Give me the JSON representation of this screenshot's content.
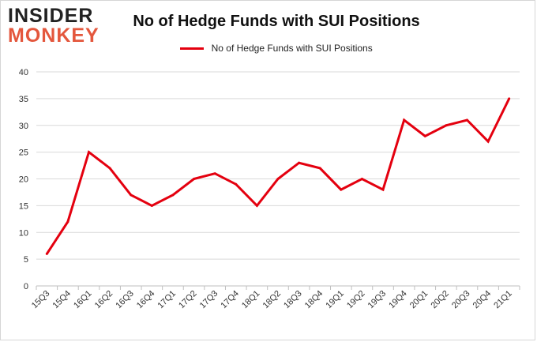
{
  "logo": {
    "line1": "INSIDER",
    "line2": "MONKEY"
  },
  "chart_data": {
    "type": "line",
    "title": "No of Hedge Funds with SUI Positions",
    "xlabel": "",
    "ylabel": "",
    "categories": [
      "15Q3",
      "15Q4",
      "16Q1",
      "16Q2",
      "16Q3",
      "16Q4",
      "17Q1",
      "17Q2",
      "17Q3",
      "17Q4",
      "18Q1",
      "18Q2",
      "18Q3",
      "18Q4",
      "19Q1",
      "19Q2",
      "19Q3",
      "19Q4",
      "20Q1",
      "20Q2",
      "20Q3",
      "20Q4",
      "21Q1"
    ],
    "series": [
      {
        "name": "No of Hedge Funds with SUI Positions",
        "color": "#e4000f",
        "values": [
          6,
          12,
          25,
          22,
          17,
          15,
          17,
          20,
          21,
          19,
          15,
          20,
          23,
          22,
          18,
          20,
          18,
          31,
          28,
          30,
          31,
          27,
          35
        ]
      }
    ],
    "ylim": [
      0,
      40
    ],
    "yticks": [
      0,
      5,
      10,
      15,
      20,
      25,
      30,
      35,
      40
    ],
    "grid": true,
    "legend_position": "top-center"
  }
}
